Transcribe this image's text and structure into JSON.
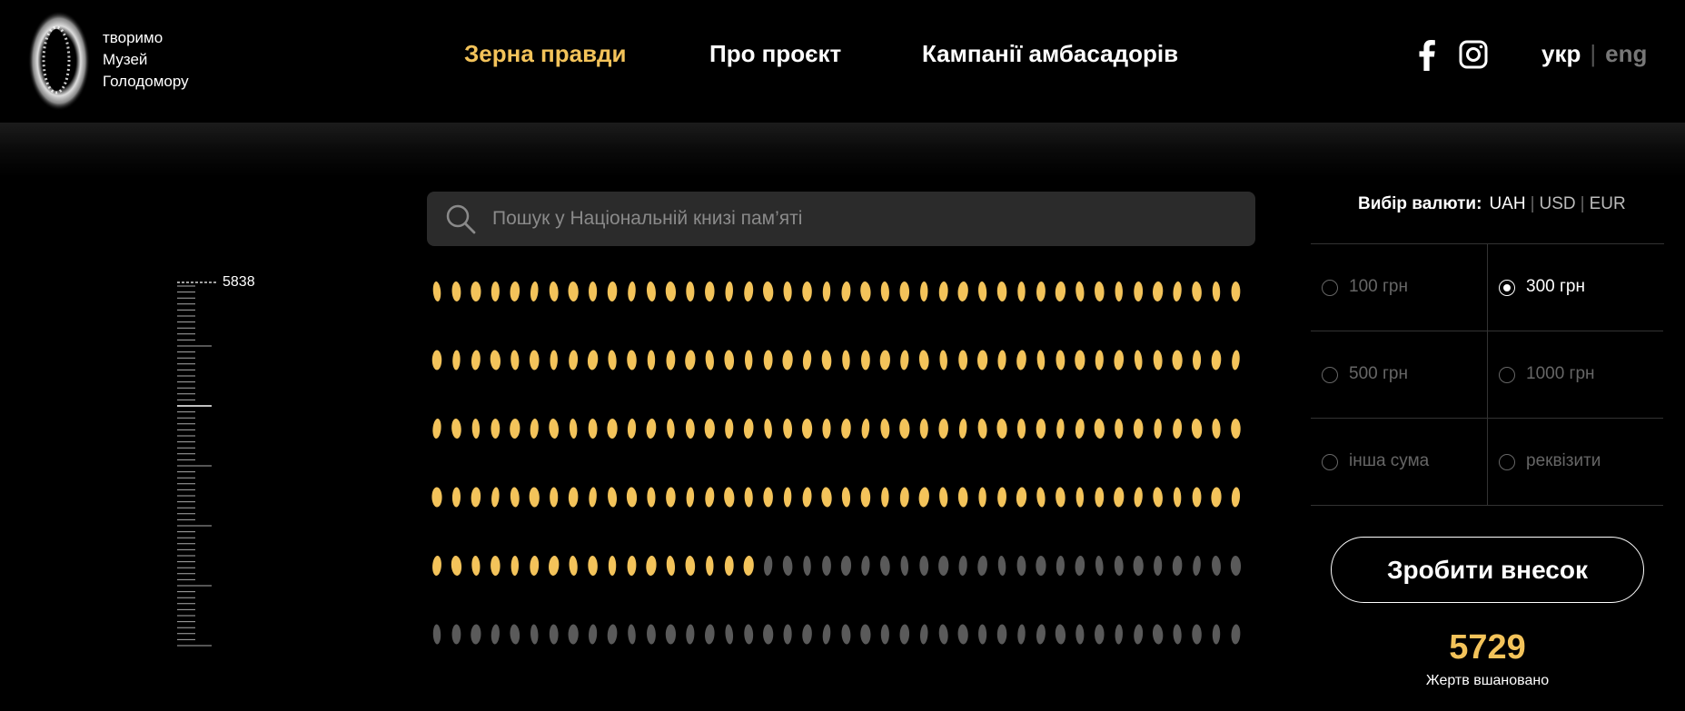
{
  "header": {
    "logo_lines": [
      "творимо",
      "Музей",
      "Голодомору"
    ],
    "nav": [
      {
        "label": "Зерна правди",
        "active": true
      },
      {
        "label": "Про проєкт",
        "active": false
      },
      {
        "label": "Кампанії амбасадорів",
        "active": false
      }
    ],
    "social": [
      "facebook-icon",
      "instagram-icon"
    ],
    "languages": [
      {
        "label": "укр",
        "active": true
      },
      {
        "label": "eng",
        "active": false
      }
    ]
  },
  "scale": {
    "max_label": "5838"
  },
  "search": {
    "placeholder": "Пошук у Національній книзі пам’яті",
    "value": ""
  },
  "grains": {
    "rows": 6,
    "per_row": 42,
    "filled_count": 185,
    "filled_color": "#f3c35a",
    "empty_color": "#5a5a5a"
  },
  "currency": {
    "label": "Вибір валюти:",
    "options": [
      "UAH",
      "USD",
      "EUR"
    ],
    "selected": "UAH"
  },
  "amounts": [
    {
      "label": "100 грн",
      "checked": false
    },
    {
      "label": "300 грн",
      "checked": true
    },
    {
      "label": "500 грн",
      "checked": false
    },
    {
      "label": "1000 грн",
      "checked": false
    },
    {
      "label": "інша сума",
      "checked": false
    },
    {
      "label": "реквізити",
      "checked": false
    }
  ],
  "donate": {
    "label": "Зробити внесок"
  },
  "stats": {
    "count": "5729",
    "label": "Жертв вшановано"
  },
  "colors": {
    "accent": "#f3c35a",
    "background": "#000000"
  }
}
